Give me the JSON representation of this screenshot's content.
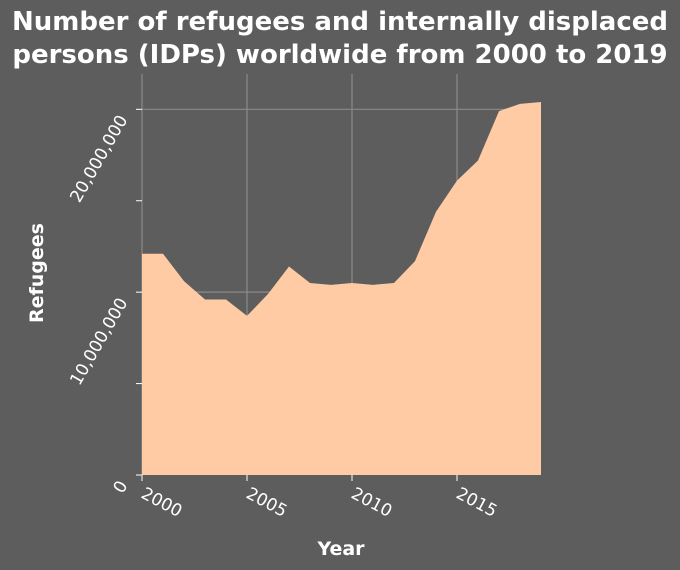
{
  "chart_data": {
    "type": "area",
    "title_lines": [
      "Number of refugees and internally displaced",
      "persons (IDPs) worldwide from 2000 to 2019"
    ],
    "xlabel": "Year",
    "ylabel": "Refugees",
    "x": [
      2000,
      2001,
      2002,
      2003,
      2004,
      2005,
      2006,
      2007,
      2008,
      2009,
      2010,
      2011,
      2012,
      2013,
      2014,
      2015,
      2016,
      2017,
      2018,
      2019
    ],
    "values": [
      12100000,
      12100000,
      10600000,
      9600000,
      9600000,
      8700000,
      9900000,
      11400000,
      10500000,
      10400000,
      10500000,
      10400000,
      10500000,
      11700000,
      14400000,
      16100000,
      17200000,
      19900000,
      20300000,
      20400000
    ],
    "xlim": [
      2000,
      2019
    ],
    "ylim": [
      0,
      20400000
    ],
    "x_ticks": [
      2000,
      2005,
      2010,
      2015
    ],
    "x_tick_labels": [
      "2000",
      "2005",
      "2010",
      "2015"
    ],
    "y_ticks": [
      0,
      5000000,
      10000000,
      15000000,
      20000000
    ],
    "y_tick_labels": [
      "0",
      "",
      "10,000,000",
      "",
      "20,000,000"
    ],
    "grid": true,
    "fill_color": "#ffcba4",
    "grid_color": "#8a8a8a",
    "background": "#5d5d5d"
  }
}
